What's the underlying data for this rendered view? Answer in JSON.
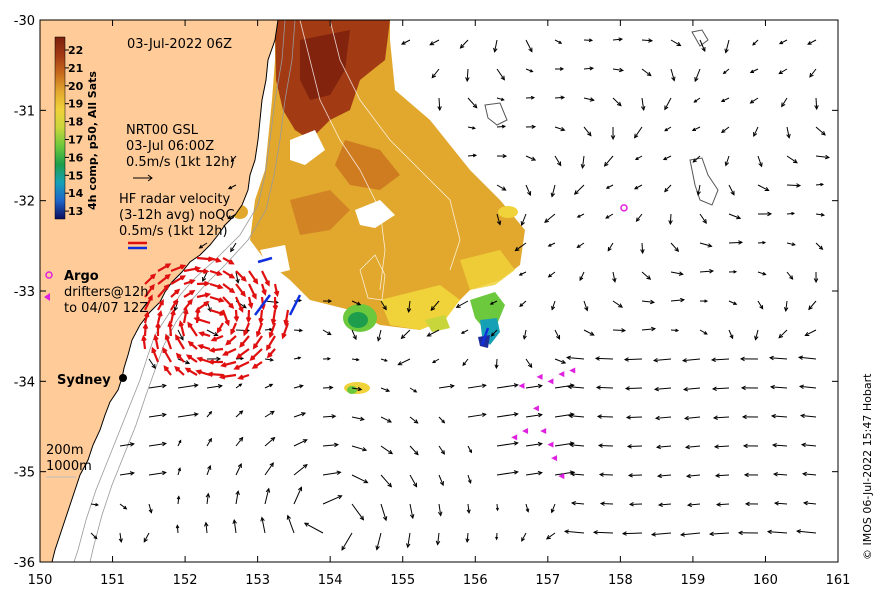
{
  "title": "03-Jul-2022 06Z",
  "colorbar": {
    "label": "4h comp, p50, All Sats",
    "ticks": [
      "22",
      "21",
      "20",
      "19",
      "18",
      "17",
      "16",
      "15",
      "14",
      "13"
    ],
    "colors": [
      "#7a1e0c",
      "#a23a14",
      "#c86a1c",
      "#e2a82e",
      "#f0d23a",
      "#c8d63c",
      "#6cc83c",
      "#1e9e4c",
      "#16a0b6",
      "#1e64c8",
      "#1c2c9c",
      "#0c0c5c"
    ]
  },
  "legend": {
    "nrt_line1": "NRT00 GSL",
    "nrt_line2": "03-Jul 06:00Z",
    "nrt_line3": "0.5m/s (1kt 12h)",
    "hf_line1": "HF radar velocity",
    "hf_line2": "(3-12h avg) noQC",
    "hf_line3": "0.5m/s (1kt 12h)",
    "argo": "Argo",
    "drifters_line1": "drifters@12h",
    "drifters_line2": "to 04/07 12Z",
    "depth_200": "200m",
    "depth_1000": "1000m"
  },
  "place": "Sydney",
  "credit": "© IMOS 06-Jul-2022 15:47 Hobart",
  "axes": {
    "x_ticks": [
      "150",
      "151",
      "152",
      "153",
      "154",
      "155",
      "156",
      "157",
      "158",
      "159",
      "160",
      "161"
    ],
    "y_ticks": [
      "-30",
      "-31",
      "-32",
      "-33",
      "-34",
      "-35",
      "-36"
    ]
  },
  "colors": {
    "land": "#ffcc99",
    "hf_arrow": "#e01010",
    "drifter": "#e020e0",
    "vector": "#000000"
  },
  "argo_floats": [
    {
      "lon": 158.05,
      "lat": -32.08
    }
  ],
  "drifters": [
    {
      "lon": 156.55,
      "lat": -34.62
    },
    {
      "lon": 156.7,
      "lat": -34.55
    },
    {
      "lon": 156.85,
      "lat": -34.3
    },
    {
      "lon": 156.65,
      "lat": -34.05
    },
    {
      "lon": 156.9,
      "lat": -33.95
    },
    {
      "lon": 157.05,
      "lat": -34.0
    },
    {
      "lon": 157.2,
      "lat": -33.92
    },
    {
      "lon": 157.35,
      "lat": -33.88
    },
    {
      "lon": 156.95,
      "lat": -34.55
    },
    {
      "lon": 157.05,
      "lat": -34.7
    },
    {
      "lon": 157.1,
      "lat": -34.85
    },
    {
      "lon": 157.2,
      "lat": -35.05
    }
  ]
}
